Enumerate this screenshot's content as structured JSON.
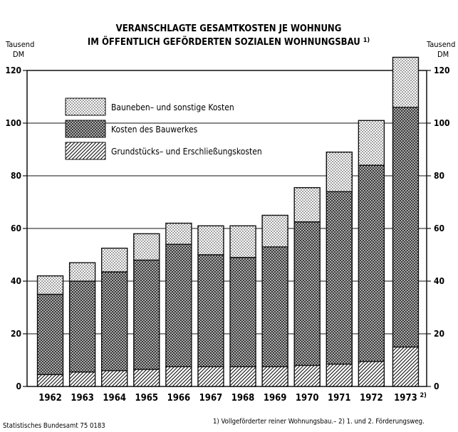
{
  "chart_data": {
    "type": "bar",
    "stacked": true,
    "title_line1": "VERANSCHLAGTE GESAMTKOSTEN JE WOHNUNG",
    "title_line2": "IM ÖFFENTLICH GEFÖRDERTEN SOZIALEN WOHNUNGSBAU",
    "title_note": "1)",
    "ylabel_left_line1": "Tausend",
    "ylabel_left_line2": "DM",
    "ylabel_right_line1": "Tausend",
    "ylabel_right_line2": "DM",
    "ylim": [
      0,
      120
    ],
    "yticks": [
      "0",
      "20",
      "40",
      "60",
      "80",
      "100",
      "120"
    ],
    "yticks_right": [
      "0",
      "20",
      "40",
      "60",
      "80",
      "100",
      "120"
    ],
    "categories": [
      "1962",
      "1963",
      "1964",
      "1965",
      "1966",
      "1967",
      "1968",
      "1969",
      "1970",
      "1971",
      "1972",
      "1973"
    ],
    "last_category_note": "2)",
    "series": [
      {
        "name": "Grundstücks– und Erschließungskosten",
        "pattern": "hatch",
        "values": [
          4.5,
          5.5,
          6,
          6.5,
          7.5,
          7.5,
          7.5,
          7.5,
          8,
          8.5,
          9.5,
          15
        ]
      },
      {
        "name": "Kosten des Bauwerkes",
        "pattern": "crosshatch",
        "values": [
          30.5,
          34.5,
          37.5,
          41.5,
          46.5,
          42.5,
          41.5,
          45.5,
          54.5,
          65.5,
          74.5,
          91
        ]
      },
      {
        "name": "Bauneben– und sonstige Kosten",
        "pattern": "dots",
        "values": [
          7,
          7,
          9,
          10,
          8,
          11,
          12,
          12,
          13,
          15,
          17,
          19
        ]
      }
    ],
    "legend_order": [
      2,
      1,
      0
    ],
    "legend_position": "top-left",
    "grid": true
  },
  "footer": {
    "source": "Statistisches Bundesamt 75 0183",
    "notes": "1) Vollgeförderter reiner Wohnungsbau.– 2) 1. und 2. Förderungsweg."
  }
}
